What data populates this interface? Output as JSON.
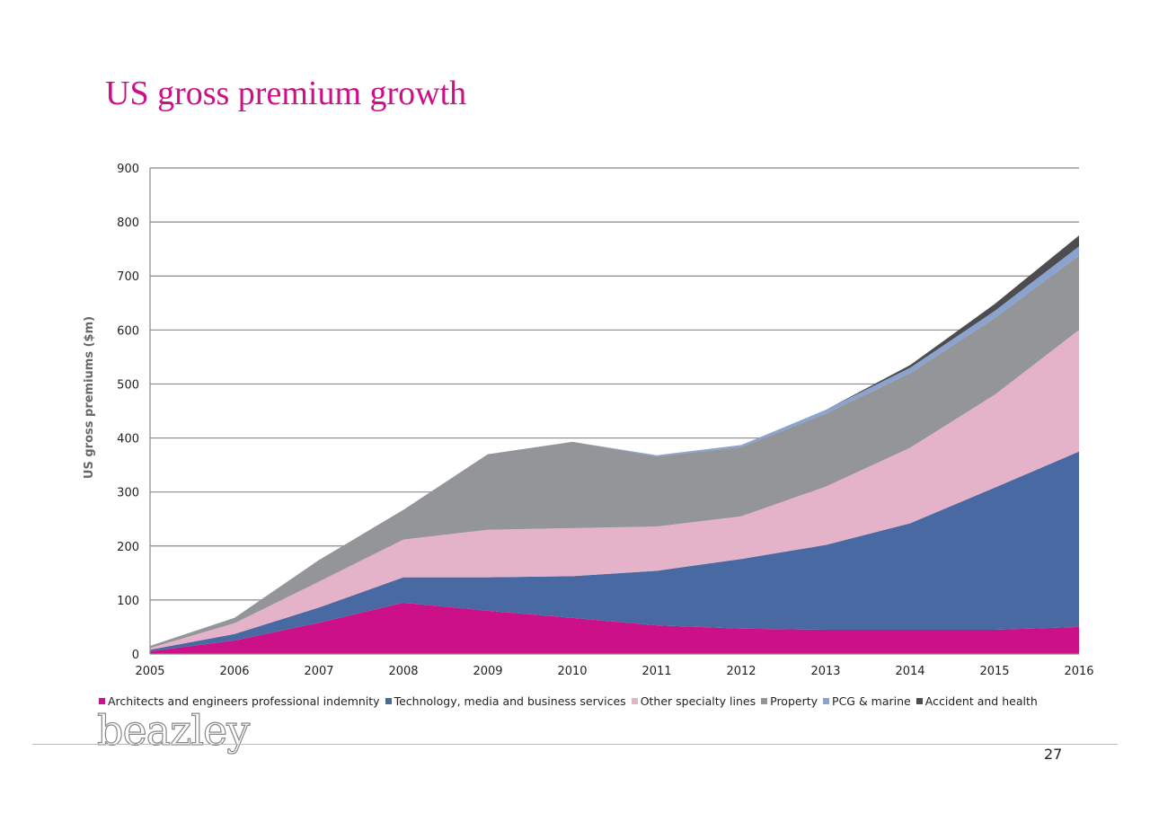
{
  "slide": {
    "title": "US gross premium growth",
    "logo_text": "beazley",
    "page_number": "27"
  },
  "chart_data": {
    "type": "area",
    "stacked": true,
    "ylabel": "US gross premiums ($m)",
    "ylim": [
      0,
      900
    ],
    "yticks": [
      0,
      100,
      200,
      300,
      400,
      500,
      600,
      700,
      800,
      900
    ],
    "grid": true,
    "legend_position": "bottom",
    "categories": [
      "2005",
      "2006",
      "2007",
      "2008",
      "2009",
      "2010",
      "2011",
      "2012",
      "2013",
      "2014",
      "2015",
      "2016"
    ],
    "series": [
      {
        "name": "Architects and engineers professional indemnity",
        "color": "#cc1188",
        "values": [
          5,
          25,
          58,
          95,
          80,
          67,
          53,
          47,
          45,
          45,
          45,
          50
        ]
      },
      {
        "name": "Technology, media and business services",
        "color": "#4869a2",
        "values": [
          3,
          12,
          28,
          47,
          62,
          77,
          101,
          129,
          157,
          197,
          263,
          325
        ]
      },
      {
        "name": "Other specialty lines",
        "color": "#e5b3c9",
        "values": [
          3,
          20,
          48,
          70,
          88,
          89,
          82,
          79,
          108,
          140,
          172,
          225
        ]
      },
      {
        "name": "Property",
        "color": "#939598",
        "values": [
          4,
          10,
          40,
          55,
          140,
          160,
          130,
          128,
          135,
          138,
          142,
          138
        ]
      },
      {
        "name": "PCG & marine",
        "color": "#8aa3cf",
        "values": [
          0,
          0,
          0,
          0,
          0,
          0,
          2,
          4,
          7,
          10,
          13,
          17
        ]
      },
      {
        "name": "Accident and health",
        "color": "#4d4d4f",
        "values": [
          0,
          0,
          0,
          0,
          0,
          0,
          0,
          0,
          0,
          5,
          13,
          20
        ]
      }
    ]
  }
}
